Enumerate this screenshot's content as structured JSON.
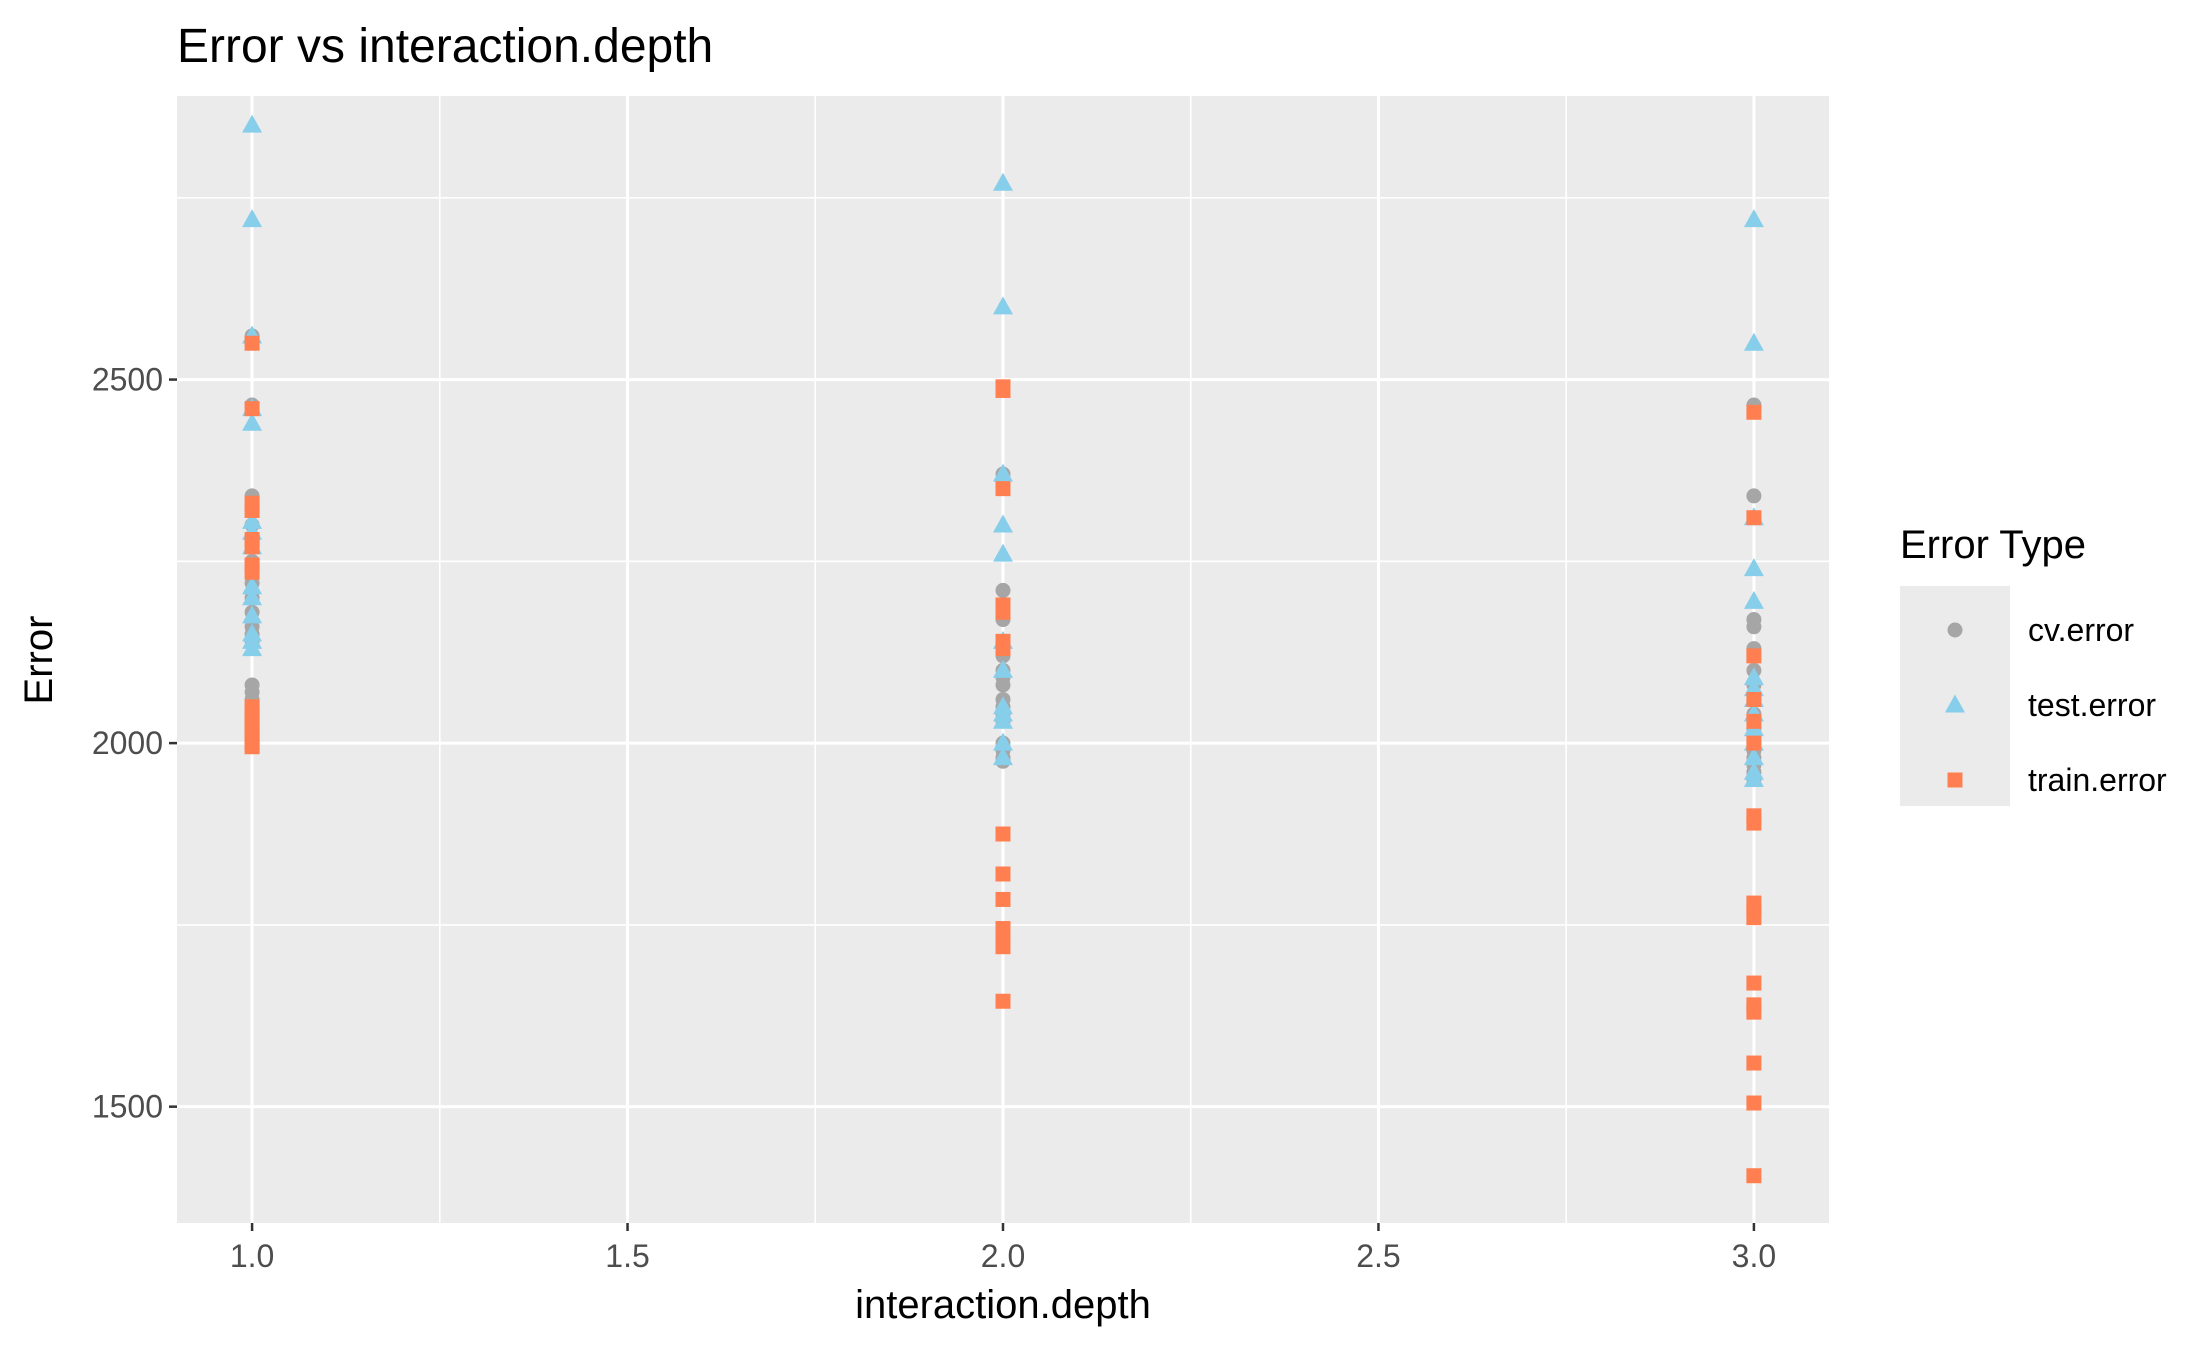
{
  "chart_data": {
    "type": "scatter",
    "title": "Error vs interaction.depth",
    "xlabel": "interaction.depth",
    "ylabel": "Error",
    "xlim": [
      0.9,
      3.1
    ],
    "ylim": [
      1340,
      2890
    ],
    "x_ticks": [
      1.0,
      1.5,
      2.0,
      2.5,
      3.0
    ],
    "x_tick_labels": [
      "1.0",
      "1.5",
      "2.0",
      "2.5",
      "3.0"
    ],
    "y_ticks": [
      1500,
      2000,
      2500
    ],
    "y_tick_labels": [
      "1500",
      "2000",
      "2500"
    ],
    "grid": true,
    "legend": {
      "title": "Error Type",
      "position": "right"
    },
    "series": [
      {
        "name": "cv.error",
        "marker": "circle",
        "color": "#a6a6a6",
        "points": [
          [
            1,
            2560
          ],
          [
            1,
            2465
          ],
          [
            1,
            2340
          ],
          [
            1,
            2330
          ],
          [
            1,
            2300
          ],
          [
            1,
            2280
          ],
          [
            1,
            2250
          ],
          [
            1,
            2240
          ],
          [
            1,
            2220
          ],
          [
            1,
            2200
          ],
          [
            1,
            2180
          ],
          [
            1,
            2160
          ],
          [
            1,
            2150
          ],
          [
            1,
            2140
          ],
          [
            1,
            2080
          ],
          [
            1,
            2070
          ],
          [
            1,
            2060
          ],
          [
            1,
            2050
          ],
          [
            1,
            2040
          ],
          [
            1,
            2030
          ],
          [
            1,
            2020
          ],
          [
            1,
            2010
          ],
          [
            2,
            2490
          ],
          [
            2,
            2370
          ],
          [
            2,
            2360
          ],
          [
            2,
            2210
          ],
          [
            2,
            2180
          ],
          [
            2,
            2170
          ],
          [
            2,
            2140
          ],
          [
            2,
            2130
          ],
          [
            2,
            2120
          ],
          [
            2,
            2100
          ],
          [
            2,
            2090
          ],
          [
            2,
            2080
          ],
          [
            2,
            2060
          ],
          [
            2,
            2050
          ],
          [
            2,
            2040
          ],
          [
            2,
            2030
          ],
          [
            2,
            2000
          ],
          [
            2,
            1990
          ],
          [
            2,
            1980
          ],
          [
            2,
            1975
          ],
          [
            3,
            2465
          ],
          [
            3,
            2460
          ],
          [
            3,
            2340
          ],
          [
            3,
            2310
          ],
          [
            3,
            2170
          ],
          [
            3,
            2160
          ],
          [
            3,
            2130
          ],
          [
            3,
            2120
          ],
          [
            3,
            2100
          ],
          [
            3,
            2080
          ],
          [
            3,
            2060
          ],
          [
            3,
            2040
          ],
          [
            3,
            2020
          ],
          [
            3,
            2010
          ],
          [
            3,
            2000
          ],
          [
            3,
            1990
          ],
          [
            3,
            1980
          ],
          [
            3,
            1970
          ],
          [
            3,
            1960
          ],
          [
            3,
            1950
          ]
        ]
      },
      {
        "name": "test.error",
        "marker": "triangle",
        "color": "#87ceeb",
        "points": [
          [
            1,
            2850
          ],
          [
            1,
            2720
          ],
          [
            1,
            2560
          ],
          [
            1,
            2460
          ],
          [
            1,
            2440
          ],
          [
            1,
            2305
          ],
          [
            1,
            2290
          ],
          [
            1,
            2270
          ],
          [
            1,
            2215
          ],
          [
            1,
            2200
          ],
          [
            1,
            2175
          ],
          [
            1,
            2150
          ],
          [
            1,
            2140
          ],
          [
            1,
            2130
          ],
          [
            2,
            2770
          ],
          [
            2,
            2600
          ],
          [
            2,
            2370
          ],
          [
            2,
            2300
          ],
          [
            2,
            2260
          ],
          [
            2,
            2140
          ],
          [
            2,
            2100
          ],
          [
            2,
            2050
          ],
          [
            2,
            2040
          ],
          [
            2,
            2030
          ],
          [
            2,
            2000
          ],
          [
            2,
            1980
          ],
          [
            3,
            2720
          ],
          [
            3,
            2550
          ],
          [
            3,
            2310
          ],
          [
            3,
            2240
          ],
          [
            3,
            2195
          ],
          [
            3,
            2090
          ],
          [
            3,
            2075
          ],
          [
            3,
            2060
          ],
          [
            3,
            2040
          ],
          [
            3,
            2020
          ],
          [
            3,
            2000
          ],
          [
            3,
            1980
          ],
          [
            3,
            1960
          ],
          [
            3,
            1950
          ]
        ]
      },
      {
        "name": "train.error",
        "marker": "square",
        "color": "#ff7f50",
        "points": [
          [
            1,
            2550
          ],
          [
            1,
            2460
          ],
          [
            1,
            2330
          ],
          [
            1,
            2320
          ],
          [
            1,
            2280
          ],
          [
            1,
            2270
          ],
          [
            1,
            2245
          ],
          [
            1,
            2235
          ],
          [
            1,
            2050
          ],
          [
            1,
            2040
          ],
          [
            1,
            2030
          ],
          [
            1,
            2020
          ],
          [
            1,
            2010
          ],
          [
            1,
            2000
          ],
          [
            1,
            1995
          ],
          [
            2,
            2490
          ],
          [
            2,
            2485
          ],
          [
            2,
            2350
          ],
          [
            2,
            2190
          ],
          [
            2,
            2180
          ],
          [
            2,
            2140
          ],
          [
            2,
            2130
          ],
          [
            2,
            1875
          ],
          [
            2,
            1820
          ],
          [
            2,
            1785
          ],
          [
            2,
            1745
          ],
          [
            2,
            1740
          ],
          [
            2,
            1720
          ],
          [
            2,
            1645
          ],
          [
            3,
            2455
          ],
          [
            3,
            2310
          ],
          [
            3,
            2120
          ],
          [
            3,
            2060
          ],
          [
            3,
            2030
          ],
          [
            3,
            2000
          ],
          [
            3,
            1900
          ],
          [
            3,
            1890
          ],
          [
            3,
            1780
          ],
          [
            3,
            1770
          ],
          [
            3,
            1760
          ],
          [
            3,
            1670
          ],
          [
            3,
            1640
          ],
          [
            3,
            1630
          ],
          [
            3,
            1560
          ],
          [
            3,
            1505
          ],
          [
            3,
            1405
          ]
        ]
      }
    ]
  }
}
